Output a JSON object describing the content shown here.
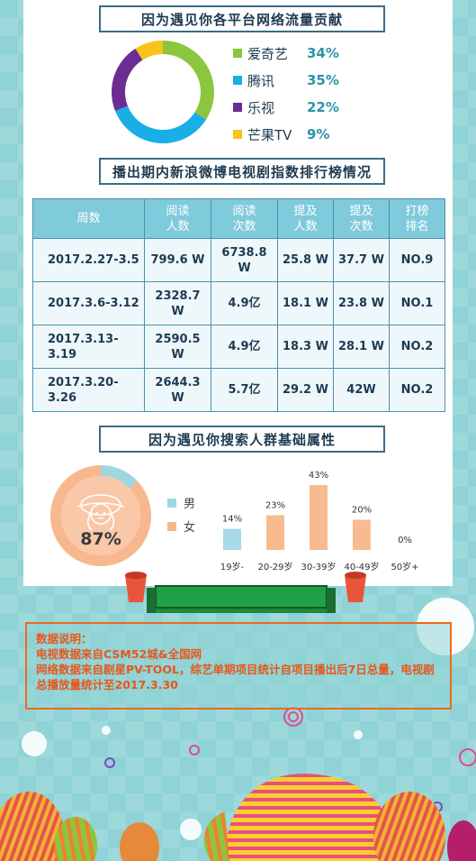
{
  "sections": {
    "traffic_title": "因为遇见你各平台网络流量贡献",
    "weibo_title": "播出期内新浪微博电视剧指数排行榜情况",
    "search_title": "因为遇见你搜索人群基础属性"
  },
  "chart_data": [
    {
      "type": "pie",
      "title": "因为遇见你各平台网络流量贡献",
      "labels": [
        "爱奇艺",
        "腾讯",
        "乐视",
        "芒果TV"
      ],
      "values": [
        34,
        35,
        22,
        9
      ],
      "value_labels": [
        "34%",
        "35%",
        "22%",
        "9%"
      ],
      "colors": [
        "#8cc63e",
        "#1aaee6",
        "#6b2d92",
        "#f8c31b"
      ],
      "legend": "right"
    },
    {
      "type": "table",
      "title": "播出期内新浪微博电视剧指数排行榜情况",
      "columns": [
        "周数",
        "阅读\n人数",
        "阅读\n次数",
        "提及\n人数",
        "提及\n次数",
        "打榜\n排名"
      ],
      "rows": [
        [
          "2017.2.27-3.5",
          "799.6 W",
          "6738.8 W",
          "25.8 W",
          "37.7 W",
          "NO.9"
        ],
        [
          "2017.3.6-3.12",
          "2328.7 W",
          "4.9亿",
          "18.1 W",
          "23.8 W",
          "NO.1"
        ],
        [
          "2017.3.13-3.19",
          "2590.5 W",
          "4.9亿",
          "18.3 W",
          "28.1 W",
          "NO.2"
        ],
        [
          "2017.3.20-3.26",
          "2644.3 W",
          "5.7亿",
          "29.2 W",
          "42W",
          "NO.2"
        ]
      ]
    },
    {
      "type": "pie",
      "title": "因为遇见你搜索人群基础属性",
      "labels": [
        "男",
        "女"
      ],
      "values": [
        13,
        87
      ],
      "center_label": "87%",
      "colors": [
        "#9fd6e0",
        "#f8b88e"
      ],
      "legend": "right"
    },
    {
      "type": "bar",
      "categories": [
        "19岁-",
        "20-29岁",
        "30-39岁",
        "40-49岁",
        "50岁+"
      ],
      "values": [
        14,
        23,
        43,
        20,
        0
      ],
      "value_labels": [
        "14%",
        "23%",
        "43%",
        "20%",
        "0%"
      ],
      "colors": [
        "#a9d8e8",
        "#f8bb8f",
        "#f8bb8f",
        "#f8bb8f",
        "#f8bb8f"
      ],
      "ylim": [
        0,
        43
      ]
    }
  ],
  "notes": {
    "heading": "数据说明：",
    "line1": "电视数据来自CSM52城&全国网",
    "line2": "网络数据来自剧星PV-TOOL，综艺单期项目统计自项目播出后7日总量，电视剧总播放量统计至2017.3.30"
  },
  "colors": {
    "background": "#8fd3d6",
    "title_border": "#3a6b86",
    "table_header": "#7fcadb",
    "note_text": "#e8561a",
    "note_border": "#ee6a1b"
  }
}
